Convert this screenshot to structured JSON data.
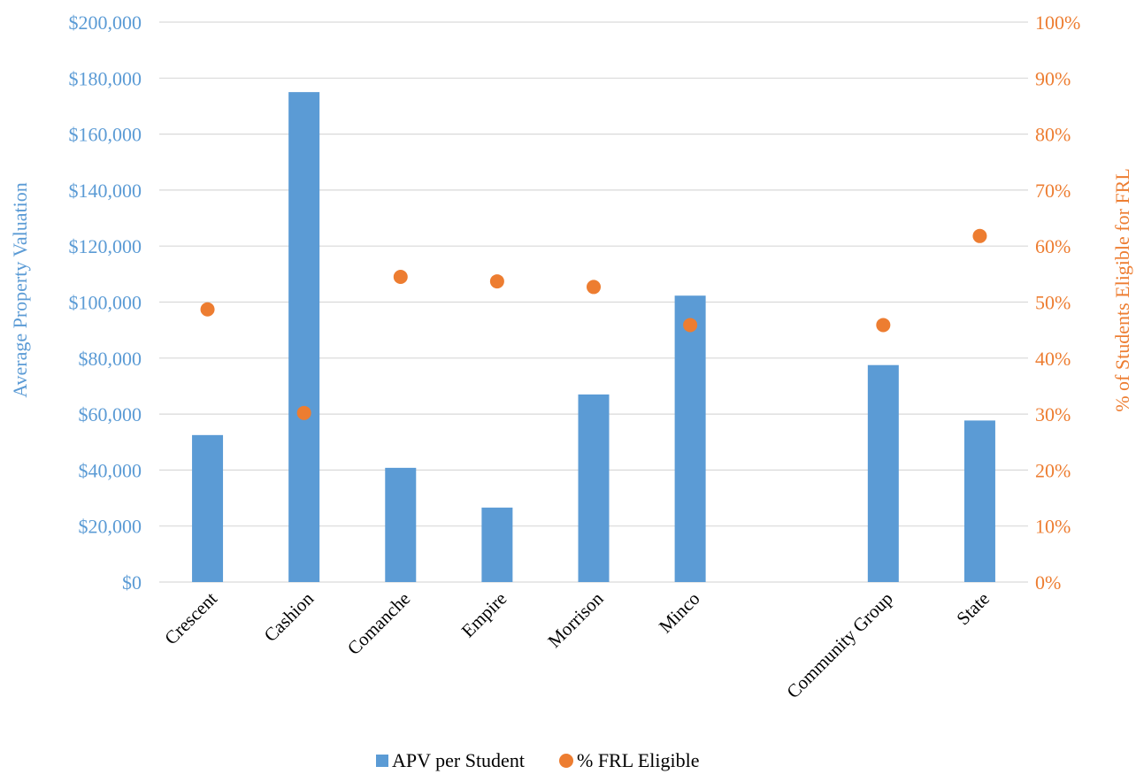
{
  "chart_data": {
    "type": "bar",
    "categories": [
      "Crescent",
      "Cashion",
      "Comanche",
      "Empire",
      "Morrison",
      "Minco",
      "",
      "Community Group",
      "State"
    ],
    "series": [
      {
        "name": "APV per Student",
        "type": "bar",
        "axis": "left",
        "color": "#5b9bd5",
        "values": [
          52500,
          175000,
          40800,
          26600,
          67000,
          102300,
          null,
          77500,
          57700
        ]
      },
      {
        "name": "% FRL Eligible",
        "type": "scatter",
        "axis": "right",
        "color": "#ed7d31",
        "values": [
          0.487,
          0.302,
          0.545,
          0.537,
          0.527,
          0.459,
          null,
          0.459,
          0.618
        ]
      }
    ],
    "ylabel": "Average Property Valuation",
    "y2label": "% of Students Eligible for FRL",
    "ylim": [
      0,
      200000
    ],
    "y2lim": [
      0,
      1
    ],
    "yticks": [
      "$0",
      "$20,000",
      "$40,000",
      "$60,000",
      "$80,000",
      "$100,000",
      "$120,000",
      "$140,000",
      "$160,000",
      "$180,000",
      "$200,000"
    ],
    "y2ticks": [
      "0%",
      "10%",
      "20%",
      "30%",
      "40%",
      "50%",
      "60%",
      "70%",
      "80%",
      "90%",
      "100%"
    ],
    "left_axis_color": "#5b9bd5",
    "right_axis_color": "#ed7d31",
    "grid": true,
    "legend": "bottom"
  }
}
